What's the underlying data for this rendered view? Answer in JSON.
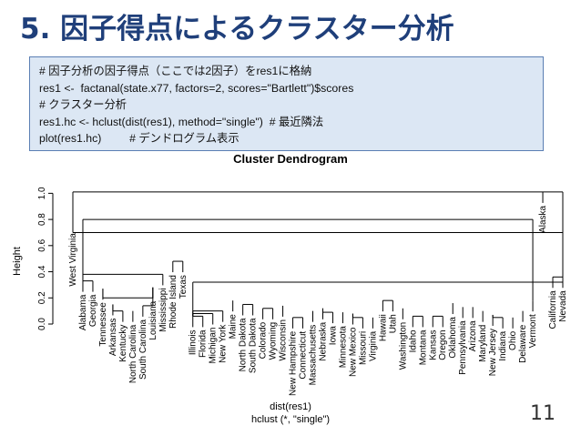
{
  "slide": {
    "title": "5. 因子得点によるクラスター分析",
    "page_number": "11",
    "code_lines": [
      "# 因子分析の因子得点（ここでは2因子）をres1に格納",
      "res1 <-  factanal(state.x77, factors=2, scores=\"Bartlett\")$scores",
      "# クラスター分析",
      "res1.hc <- hclust(dist(res1), method=\"single\")  # 最近隣法",
      "plot(res1.hc)         # デンドログラム表示"
    ]
  },
  "chart_data": {
    "type": "dendrogram",
    "title": "Cluster Dendrogram",
    "ylabel": "Height",
    "xlabel": "dist(res1)",
    "sub": "hclust (*, \"single\")",
    "ylim": [
      0,
      1.1
    ],
    "yticks": [
      "0.0",
      "0.2",
      "0.4",
      "0.6",
      "0.8",
      "1.0"
    ],
    "grid": false,
    "leaves": [
      {
        "label": "West Virginia",
        "height": 0.8
      },
      {
        "label": "Alabama",
        "height": 0.33
      },
      {
        "label": "Georgia",
        "height": 0.33
      },
      {
        "label": "Tennessee",
        "height": 0.27
      },
      {
        "label": "Arkansas",
        "height": 0.15
      },
      {
        "label": "Kentucky",
        "height": 0.1
      },
      {
        "label": "North Carolina",
        "height": 0.1
      },
      {
        "label": "South Carolina",
        "height": 0.14
      },
      {
        "label": "Louisiana",
        "height": 0.28
      },
      {
        "label": "Mississippi",
        "height": 0.38
      },
      {
        "label": "Rhode Island",
        "height": 0.48
      },
      {
        "label": "Texas",
        "height": 0.48
      },
      {
        "label": "Illinois",
        "height": 0.06
      },
      {
        "label": "Florida",
        "height": 0.06
      },
      {
        "label": "Michigan",
        "height": 0.08
      },
      {
        "label": "New York",
        "height": 0.1
      },
      {
        "label": "Maine",
        "height": 0.18
      },
      {
        "label": "North Dakota",
        "height": 0.15
      },
      {
        "label": "South Dakota",
        "height": 0.15
      },
      {
        "label": "Colorado",
        "height": 0.12
      },
      {
        "label": "Wyoming",
        "height": 0.12
      },
      {
        "label": "Wisconsin",
        "height": 0.14
      },
      {
        "label": "New Hampshire",
        "height": 0.05
      },
      {
        "label": "Connecticut",
        "height": 0.05
      },
      {
        "label": "Massachusetts",
        "height": 0.1
      },
      {
        "label": "Nebraska",
        "height": 0.12
      },
      {
        "label": "Iowa",
        "height": 0.09
      },
      {
        "label": "Minnesota",
        "height": 0.09
      },
      {
        "label": "New Mexico",
        "height": 0.08
      },
      {
        "label": "Missouri",
        "height": 0.05
      },
      {
        "label": "Virginia",
        "height": 0.05
      },
      {
        "label": "Hawaii",
        "height": 0.18
      },
      {
        "label": "Utah",
        "height": 0.18
      },
      {
        "label": "Washington",
        "height": 0.12
      },
      {
        "label": "Idaho",
        "height": 0.06
      },
      {
        "label": "Montana",
        "height": 0.06
      },
      {
        "label": "Kansas",
        "height": 0.06
      },
      {
        "label": "Oregon",
        "height": 0.06
      },
      {
        "label": "Oklahoma",
        "height": 0.16
      },
      {
        "label": "Pennsylvania",
        "height": 0.13
      },
      {
        "label": "Arizona",
        "height": 0.13
      },
      {
        "label": "Maryland",
        "height": 0.1
      },
      {
        "label": "New Jersey",
        "height": 0.07
      },
      {
        "label": "Indiana",
        "height": 0.05
      },
      {
        "label": "Ohio",
        "height": 0.05
      },
      {
        "label": "Delaware",
        "height": 0.1
      },
      {
        "label": "Vermont",
        "height": 0.18
      },
      {
        "label": "Alaska",
        "height": 1.01
      },
      {
        "label": "California",
        "height": 0.36
      },
      {
        "label": "Nevada",
        "height": 0.36
      }
    ],
    "merges": [
      {
        "leaves": [
          1,
          2
        ],
        "height": 0.33
      },
      {
        "leaves": [
          4,
          5
        ],
        "height": 0.1
      },
      {
        "leaves": [
          7,
          8
        ],
        "height": 0.14
      },
      {
        "leaves": [
          3,
          4,
          5,
          6,
          7,
          8
        ],
        "height": 0.2
      },
      {
        "leaves": [
          1,
          2,
          3,
          4,
          5,
          6,
          7,
          8,
          9
        ],
        "height": 0.38
      },
      {
        "leaves": [
          10,
          11
        ],
        "height": 0.48
      },
      {
        "leaves": [
          12,
          13
        ],
        "height": 0.06
      },
      {
        "leaves": [
          12,
          13,
          14
        ],
        "height": 0.08
      },
      {
        "leaves": [
          12,
          13,
          14,
          15
        ],
        "height": 0.1
      },
      {
        "leaves": [
          17,
          18
        ],
        "height": 0.15
      },
      {
        "leaves": [
          19,
          20
        ],
        "height": 0.12
      },
      {
        "leaves": [
          22,
          23
        ],
        "height": 0.05
      },
      {
        "leaves": [
          25,
          26
        ],
        "height": 0.09
      },
      {
        "leaves": [
          28,
          29
        ],
        "height": 0.05
      },
      {
        "leaves": [
          31,
          32
        ],
        "height": 0.18
      },
      {
        "leaves": [
          34,
          35
        ],
        "height": 0.06
      },
      {
        "leaves": [
          36,
          37
        ],
        "height": 0.06
      },
      {
        "leaves": [
          42,
          43
        ],
        "height": 0.05
      },
      {
        "leaves": [
          48,
          49
        ],
        "height": 0.36
      },
      {
        "leaves": [
          12,
          49
        ],
        "height": 0.32
      },
      {
        "leaves": [
          0,
          49
        ],
        "height": 0.7
      },
      {
        "leaves": [
          1,
          46
        ],
        "height": 0.8
      },
      {
        "leaves": [
          0,
          49
        ],
        "height": 1.01
      }
    ]
  },
  "colors": {
    "title": "#1f3f7a",
    "code_background": "#dce7f4",
    "code_border": "#5b7fb4",
    "lines": "#000000"
  }
}
